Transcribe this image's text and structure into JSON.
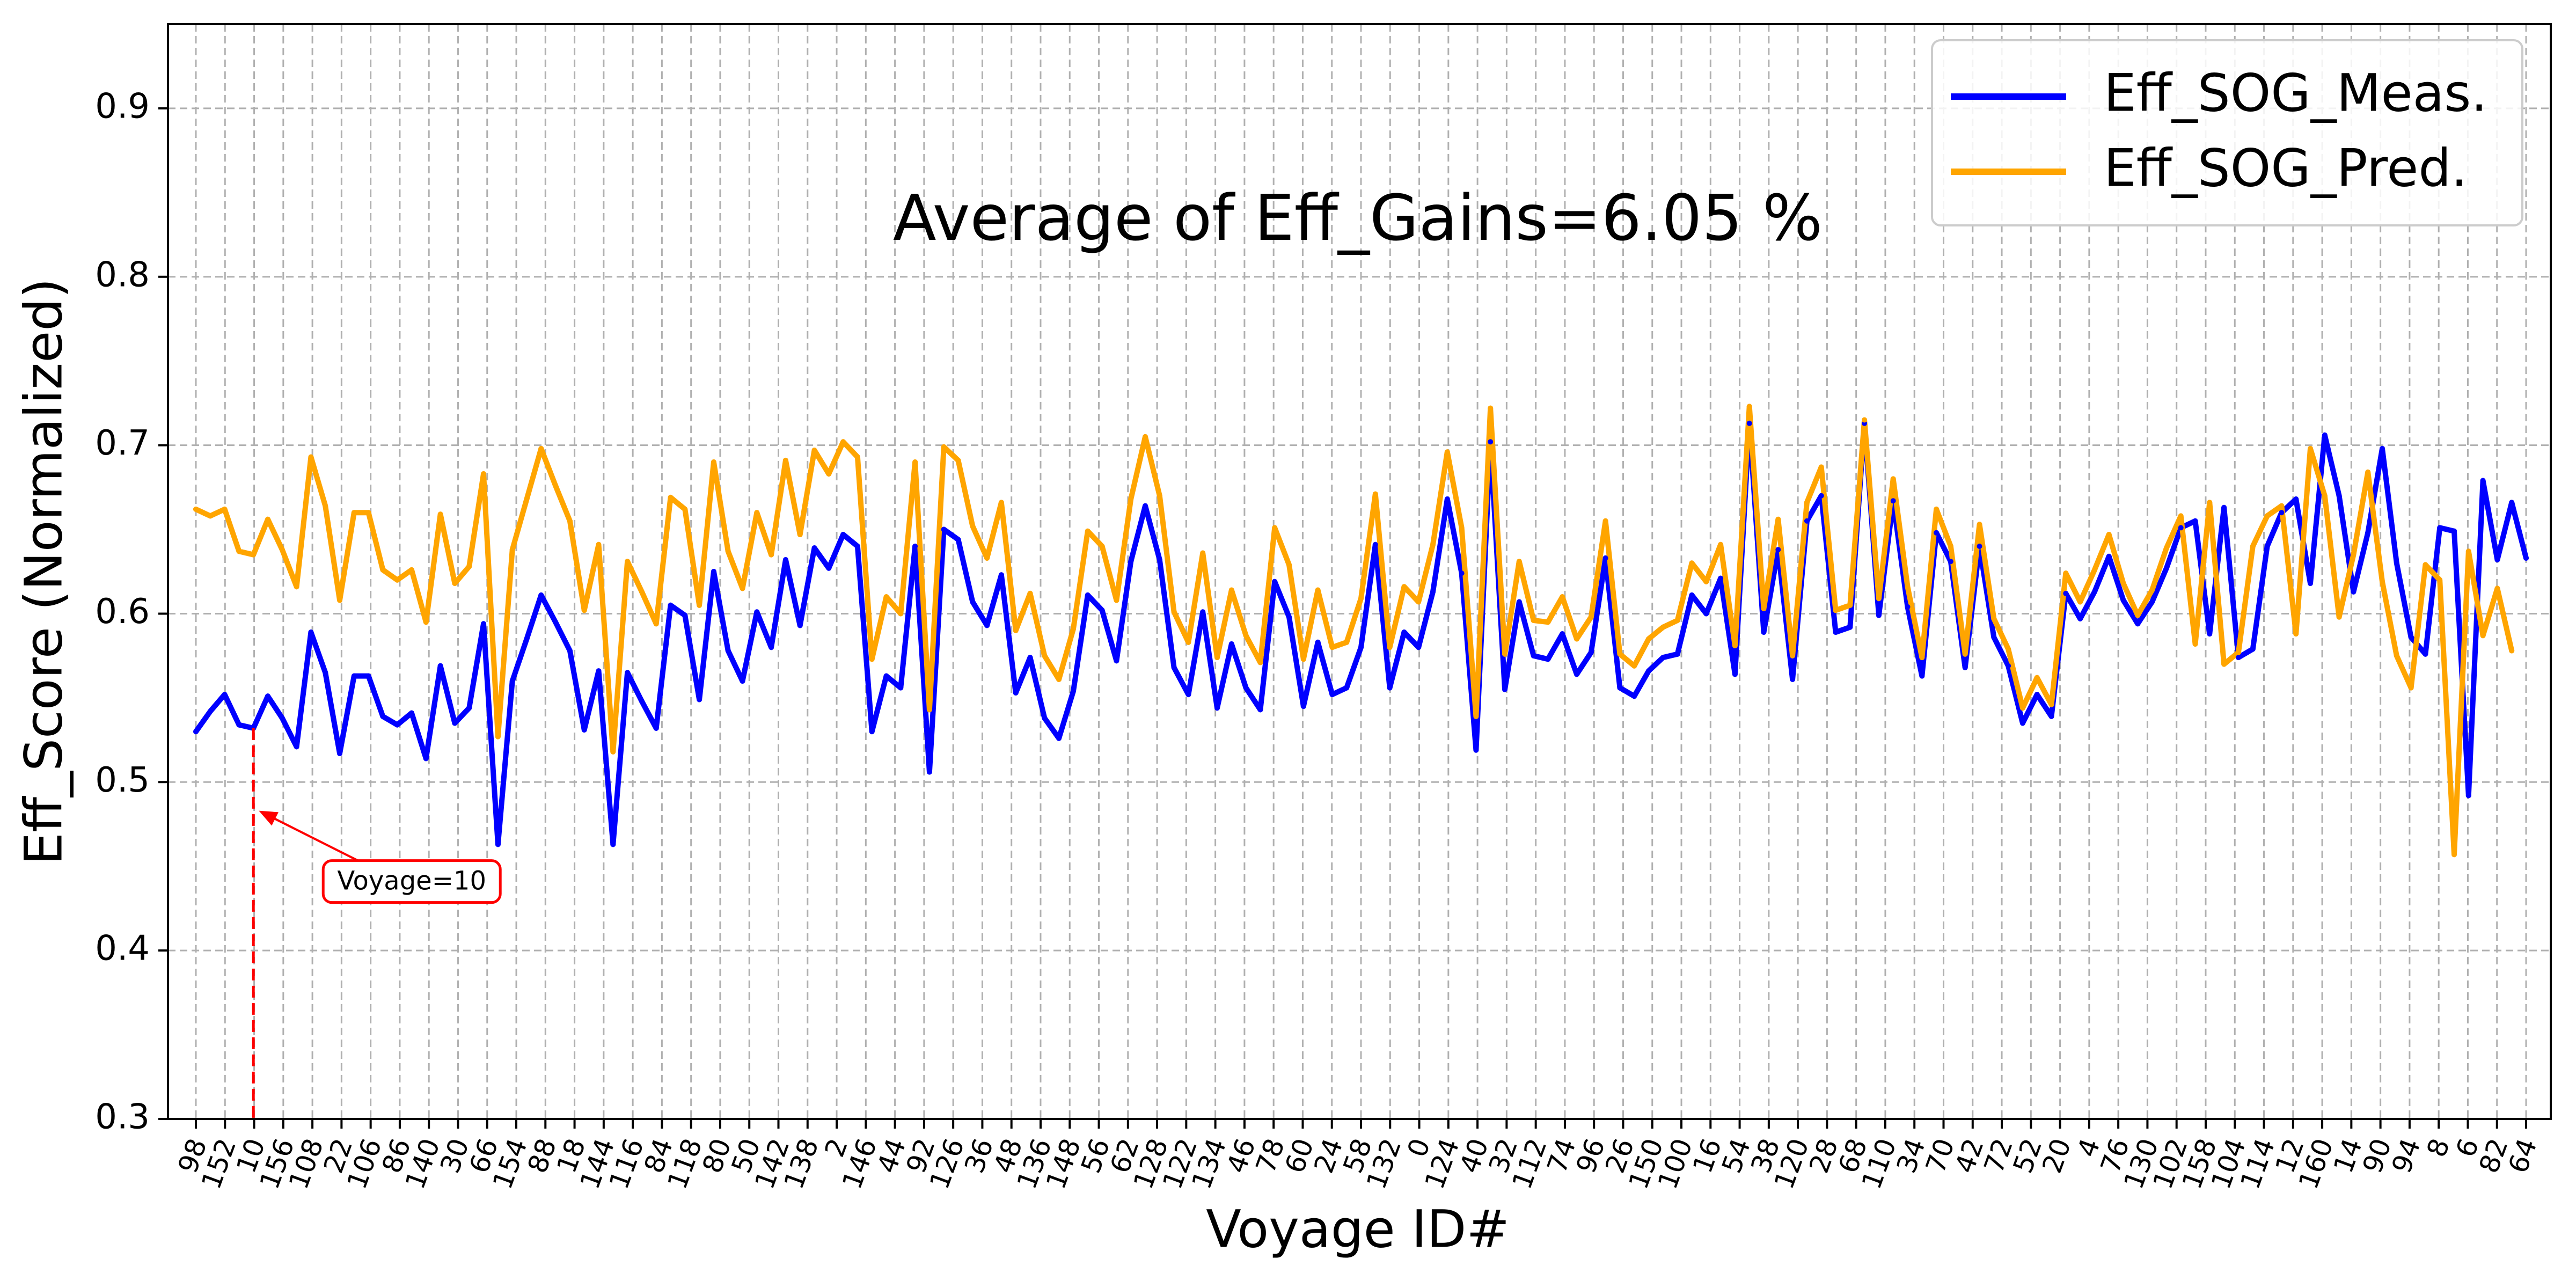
{
  "chart_data": {
    "type": "line",
    "title": "",
    "xlabel": "Voyage ID#",
    "ylabel": "Eff_Score (Normalized)",
    "ylim": [
      0.3,
      0.95
    ],
    "yticks": [
      "0.3",
      "0.4",
      "0.5",
      "0.6",
      "0.7",
      "0.8",
      "0.9"
    ],
    "grid": true,
    "legend_position": "top-right",
    "x_tick_labels": [
      "98",
      "152",
      "10",
      "156",
      "108",
      "22",
      "106",
      "86",
      "140",
      "30",
      "66",
      "154",
      "88",
      "18",
      "144",
      "116",
      "84",
      "118",
      "80",
      "50",
      "142",
      "138",
      "2",
      "146",
      "44",
      "92",
      "126",
      "36",
      "48",
      "136",
      "148",
      "56",
      "62",
      "128",
      "122",
      "134",
      "46",
      "78",
      "60",
      "24",
      "58",
      "132",
      "0",
      "124",
      "40",
      "32",
      "112",
      "74",
      "96",
      "26",
      "150",
      "100",
      "16",
      "54",
      "38",
      "120",
      "28",
      "68",
      "110",
      "34",
      "70",
      "42",
      "72",
      "52",
      "20",
      "4",
      "76",
      "130",
      "102",
      "158",
      "104",
      "114",
      "12",
      "160",
      "14",
      "90",
      "94",
      "8",
      "6",
      "82",
      "64"
    ],
    "series": [
      {
        "name": "Eff_SOG_Meas.",
        "color": "#0000ff",
        "values": [
          0.53,
          0.542,
          0.552,
          0.534,
          0.532,
          0.551,
          0.538,
          0.521,
          0.589,
          0.565,
          0.517,
          0.563,
          0.563,
          0.539,
          0.534,
          0.541,
          0.514,
          0.569,
          0.535,
          0.544,
          0.594,
          0.463,
          0.56,
          0.585,
          0.611,
          0.595,
          0.578,
          0.531,
          0.566,
          0.463,
          0.565,
          0.548,
          0.532,
          0.605,
          0.599,
          0.549,
          0.625,
          0.578,
          0.56,
          0.601,
          0.58,
          0.632,
          0.593,
          0.639,
          0.627,
          0.647,
          0.64,
          0.53,
          0.563,
          0.556,
          0.64,
          0.506,
          0.65,
          0.644,
          0.607,
          0.593,
          0.623,
          0.553,
          0.574,
          0.538,
          0.526,
          0.554,
          0.611,
          0.602,
          0.572,
          0.631,
          0.664,
          0.632,
          0.568,
          0.552,
          0.601,
          0.544,
          0.582,
          0.556,
          0.543,
          0.619,
          0.598,
          0.545,
          0.583,
          0.552,
          0.556,
          0.58,
          0.641,
          0.556,
          0.589,
          0.58,
          0.613,
          0.668,
          0.624,
          0.519,
          0.702,
          0.555,
          0.607,
          0.575,
          0.573,
          0.588,
          0.564,
          0.577,
          0.633,
          0.556,
          0.551,
          0.566,
          0.574,
          0.576,
          0.611,
          0.6,
          0.621,
          0.564,
          0.713,
          0.589,
          0.638,
          0.561,
          0.655,
          0.67,
          0.589,
          0.592,
          0.713,
          0.599,
          0.667,
          0.604,
          0.563,
          0.648,
          0.631,
          0.568,
          0.64,
          0.586,
          0.569,
          0.535,
          0.552,
          0.539,
          0.612,
          0.597,
          0.613,
          0.634,
          0.608,
          0.594,
          0.607,
          0.627,
          0.651,
          0.655,
          0.588,
          0.663,
          0.574,
          0.579,
          0.64,
          0.66,
          0.668,
          0.618,
          0.706,
          0.67,
          0.613,
          0.648,
          0.698,
          0.63,
          0.586,
          0.576,
          0.651,
          0.649,
          0.492,
          0.679,
          0.632,
          0.666,
          0.633
        ]
      },
      {
        "name": "Eff_SOG_Pred.",
        "color": "#ffa500",
        "values": [
          0.662,
          0.658,
          0.662,
          0.637,
          0.635,
          0.656,
          0.638,
          0.616,
          0.693,
          0.664,
          0.608,
          0.66,
          0.66,
          0.626,
          0.62,
          0.626,
          0.595,
          0.659,
          0.618,
          0.628,
          0.683,
          0.527,
          0.638,
          0.668,
          0.698,
          0.676,
          0.655,
          0.602,
          0.641,
          0.518,
          0.631,
          0.613,
          0.594,
          0.669,
          0.662,
          0.605,
          0.69,
          0.637,
          0.615,
          0.66,
          0.635,
          0.691,
          0.647,
          0.697,
          0.683,
          0.702,
          0.693,
          0.573,
          0.61,
          0.6,
          0.69,
          0.543,
          0.699,
          0.691,
          0.652,
          0.633,
          0.666,
          0.59,
          0.612,
          0.575,
          0.561,
          0.591,
          0.649,
          0.64,
          0.608,
          0.668,
          0.705,
          0.67,
          0.601,
          0.583,
          0.636,
          0.574,
          0.614,
          0.587,
          0.571,
          0.651,
          0.629,
          0.573,
          0.614,
          0.58,
          0.583,
          0.609,
          0.671,
          0.58,
          0.616,
          0.607,
          0.641,
          0.696,
          0.651,
          0.539,
          0.722,
          0.576,
          0.631,
          0.596,
          0.595,
          0.61,
          0.585,
          0.598,
          0.655,
          0.576,
          0.569,
          0.585,
          0.592,
          0.596,
          0.63,
          0.619,
          0.641,
          0.581,
          0.723,
          0.603,
          0.656,
          0.575,
          0.666,
          0.687,
          0.602,
          0.605,
          0.715,
          0.609,
          0.68,
          0.616,
          0.574,
          0.662,
          0.64,
          0.576,
          0.653,
          0.597,
          0.579,
          0.544,
          0.562,
          0.546,
          0.624,
          0.607,
          0.626,
          0.647,
          0.618,
          0.599,
          0.614,
          0.639,
          0.658,
          0.582,
          0.666,
          0.57,
          0.577,
          0.64,
          0.658,
          0.664,
          0.588,
          0.698,
          0.67,
          0.598,
          0.635,
          0.684,
          0.619,
          0.575,
          0.556,
          0.629,
          0.62,
          0.457,
          0.637,
          0.587,
          0.615,
          0.578
        ]
      }
    ],
    "annotation_text": "Average of Eff_Gains=6.05 %",
    "marker": {
      "label": "Voyage=10",
      "x_index": 4,
      "y_value": 0.483,
      "color": "#ff0000"
    }
  }
}
